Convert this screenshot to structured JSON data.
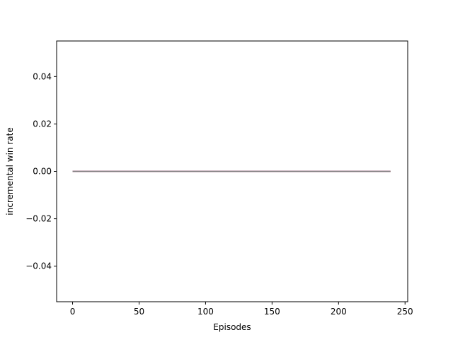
{
  "chart_data": {
    "type": "line",
    "title": "",
    "xlabel": "Episodes",
    "ylabel": "incremental win rate",
    "xlim": [
      -12,
      252
    ],
    "ylim": [
      -0.055,
      0.055
    ],
    "x_ticks": [
      0,
      50,
      100,
      150,
      200,
      250
    ],
    "y_ticks": [
      -0.04,
      -0.02,
      0.0,
      0.02,
      0.04
    ],
    "x_tick_labels": [
      "0",
      "50",
      "100",
      "150",
      "200",
      "250"
    ],
    "y_tick_labels": [
      "−0.04",
      "−0.02",
      "0.00",
      "0.02",
      "0.04"
    ],
    "grid": false,
    "series": [
      {
        "x": [
          0,
          239
        ],
        "values": [
          0,
          0
        ],
        "color": "#1f77b4"
      },
      {
        "x": [
          0,
          239
        ],
        "values": [
          0,
          0
        ],
        "color": "#ff7f0e"
      },
      {
        "x": [
          0,
          239
        ],
        "values": [
          0,
          0
        ],
        "color": "#2ca02c"
      },
      {
        "x": [
          0,
          239
        ],
        "values": [
          0,
          0
        ],
        "color": "#d62728"
      },
      {
        "x": [
          0,
          239
        ],
        "values": [
          0,
          0
        ],
        "color": "#9467bd"
      },
      {
        "x": [
          0,
          239
        ],
        "values": [
          0,
          0
        ],
        "color": "#8c564b"
      },
      {
        "x": [
          0,
          239
        ],
        "values": [
          0,
          0
        ],
        "color": "#e377c2"
      },
      {
        "x": [
          0,
          239
        ],
        "values": [
          0,
          0
        ],
        "color": "#7f7f7f"
      }
    ]
  }
}
